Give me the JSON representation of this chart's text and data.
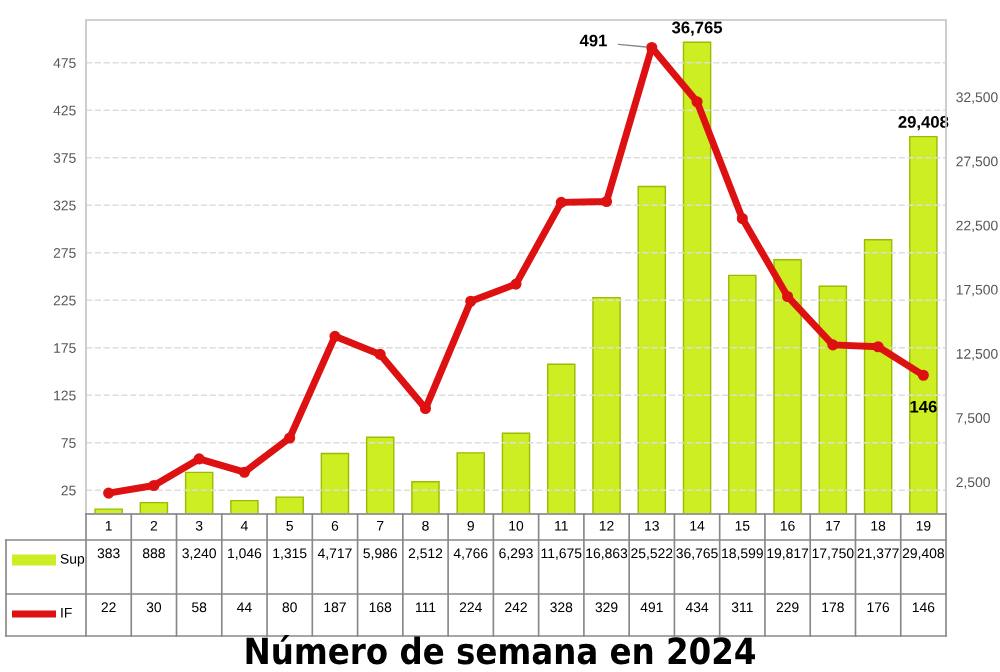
{
  "chart_data": {
    "type": "bar",
    "title": "Número de semana en 2024",
    "categories": [
      "1",
      "2",
      "3",
      "4",
      "5",
      "6",
      "7",
      "8",
      "9",
      "10",
      "11",
      "12",
      "13",
      "14",
      "15",
      "16",
      "17",
      "18",
      "19"
    ],
    "series": [
      {
        "name": "Sup",
        "axis": "y2",
        "color": "#ccee22",
        "values": [
          383,
          888,
          3240,
          1046,
          1315,
          4717,
          5986,
          2512,
          4766,
          6293,
          11675,
          16863,
          25522,
          36765,
          18599,
          19817,
          17750,
          21377,
          29408
        ],
        "value_labels": [
          "383",
          "888",
          "3,240",
          "1,046",
          "1,315",
          "4,717",
          "5,986",
          "2,512",
          "4,766",
          "6,293",
          "11,675",
          "16,863",
          "25,522",
          "36,765",
          "18,599",
          "19,817",
          "17,750",
          "21,377",
          "29,408"
        ]
      },
      {
        "name": "IF",
        "type": "line",
        "axis": "y",
        "color": "#dd1111",
        "marker": "circle",
        "line_style": "solid",
        "values": [
          22,
          30,
          58,
          44,
          80,
          187,
          168,
          111,
          224,
          242,
          328,
          329,
          491,
          434,
          311,
          229,
          178,
          176,
          146
        ],
        "value_labels": [
          "22",
          "30",
          "58",
          "44",
          "80",
          "187",
          "168",
          "111",
          "224",
          "242",
          "328",
          "329",
          "491",
          "434",
          "311",
          "229",
          "178",
          "176",
          "146"
        ]
      }
    ],
    "annotations": [
      {
        "text": "491",
        "x": "13",
        "y": 491
      },
      "36,765",
      "29,408",
      {
        "text": "146",
        "x": "19",
        "y": 146
      }
    ],
    "ylim": [
      0,
      520
    ],
    "yticks": [
      25,
      75,
      125,
      175,
      225,
      275,
      325,
      375,
      425,
      475
    ],
    "y2lim": [
      0,
      38500
    ],
    "y2ticks": [
      {
        "value": 2500,
        "label": "2,500"
      },
      {
        "value": 7500,
        "label": "7,500"
      },
      {
        "value": 12500,
        "label": "12,500"
      },
      {
        "value": 17500,
        "label": "17,500"
      },
      {
        "value": 22500,
        "label": "22,500"
      },
      {
        "value": 27500,
        "label": "27,500"
      },
      {
        "value": 32500,
        "label": "32,500"
      }
    ],
    "grid": "y",
    "legend": "bottom"
  }
}
